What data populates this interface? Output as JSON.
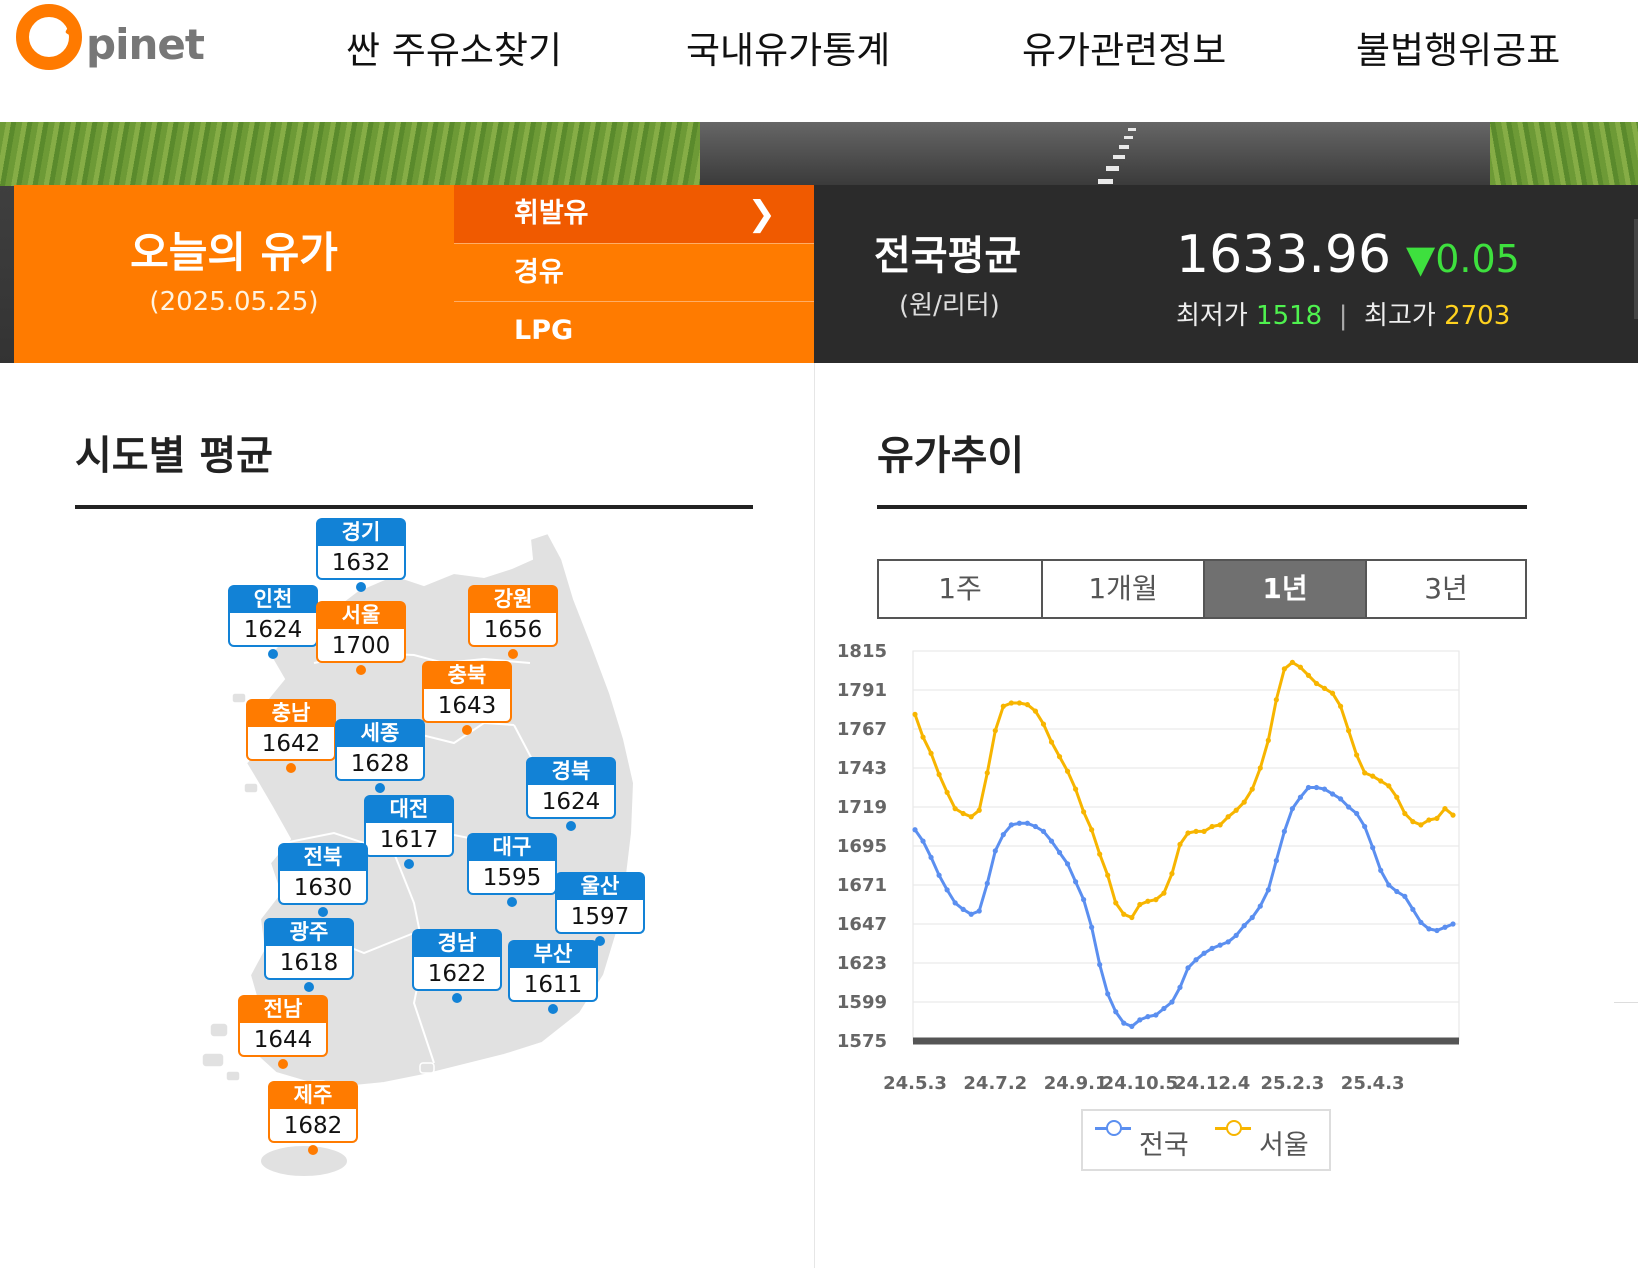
{
  "header": {
    "logo_text": "pinet",
    "nav": [
      "싼 주유소찾기",
      "국내유가통계",
      "유가관련정보",
      "불법행위공표"
    ]
  },
  "today": {
    "title": "오늘의 유가",
    "date": "(2025.05.25)",
    "fuel_types": [
      "휘발유",
      "경유",
      "LPG"
    ],
    "active_fuel": "휘발유"
  },
  "national_average": {
    "title": "전국평균",
    "unit": "(원/리터)",
    "value": "1633.96",
    "change_symbol": "▼",
    "change": "0.05",
    "min_label": "최저가",
    "min_value": "1518",
    "max_label": "최고가",
    "max_value": "2703",
    "separator": "|"
  },
  "regional": {
    "title": "시도별 평균",
    "regions": [
      {
        "name": "경기",
        "value": "1632",
        "color": "blue"
      },
      {
        "name": "인천",
        "value": "1624",
        "color": "blue"
      },
      {
        "name": "서울",
        "value": "1700",
        "color": "orange"
      },
      {
        "name": "강원",
        "value": "1656",
        "color": "orange"
      },
      {
        "name": "충북",
        "value": "1643",
        "color": "orange"
      },
      {
        "name": "충남",
        "value": "1642",
        "color": "orange"
      },
      {
        "name": "세종",
        "value": "1628",
        "color": "blue"
      },
      {
        "name": "경북",
        "value": "1624",
        "color": "blue"
      },
      {
        "name": "대전",
        "value": "1617",
        "color": "blue"
      },
      {
        "name": "전북",
        "value": "1630",
        "color": "blue"
      },
      {
        "name": "대구",
        "value": "1595",
        "color": "blue"
      },
      {
        "name": "울산",
        "value": "1597",
        "color": "blue"
      },
      {
        "name": "광주",
        "value": "1618",
        "color": "blue"
      },
      {
        "name": "경남",
        "value": "1622",
        "color": "blue"
      },
      {
        "name": "부산",
        "value": "1611",
        "color": "blue"
      },
      {
        "name": "전남",
        "value": "1644",
        "color": "orange"
      },
      {
        "name": "제주",
        "value": "1682",
        "color": "orange"
      }
    ]
  },
  "trend": {
    "title": "유가추이",
    "periods": [
      "1주",
      "1개월",
      "1년",
      "3년"
    ],
    "active_period": "1년"
  },
  "chart_data": {
    "type": "line",
    "title": "",
    "xlabel": "",
    "ylabel": "",
    "ylim": [
      1575,
      1815
    ],
    "yticks": [
      1815,
      1791,
      1767,
      1743,
      1719,
      1695,
      1671,
      1647,
      1623,
      1599,
      1575
    ],
    "xtick_labels": [
      "24.5.3",
      "24.7.2",
      "24.9.1",
      "24.10.5",
      "24.12.4",
      "25.2.3",
      "25.4.3"
    ],
    "grid": true,
    "legend_position": "bottom",
    "series": [
      {
        "name": "전국",
        "color": "#5b8ff0",
        "values": [
          1705,
          1698,
          1688,
          1677,
          1668,
          1660,
          1656,
          1653,
          1655,
          1672,
          1692,
          1702,
          1708,
          1709,
          1709,
          1707,
          1704,
          1698,
          1691,
          1684,
          1673,
          1662,
          1645,
          1622,
          1604,
          1593,
          1586,
          1584,
          1588,
          1590,
          1591,
          1595,
          1599,
          1608,
          1620,
          1625,
          1629,
          1632,
          1634,
          1636,
          1640,
          1646,
          1651,
          1658,
          1668,
          1686,
          1704,
          1718,
          1725,
          1731,
          1731,
          1730,
          1727,
          1724,
          1719,
          1715,
          1707,
          1694,
          1680,
          1671,
          1667,
          1664,
          1656,
          1648,
          1644,
          1643,
          1645,
          1647
        ]
      },
      {
        "name": "서울",
        "color": "#f7b500",
        "values": [
          1776,
          1762,
          1752,
          1739,
          1728,
          1718,
          1715,
          1713,
          1717,
          1740,
          1766,
          1781,
          1783,
          1783,
          1782,
          1778,
          1770,
          1759,
          1750,
          1741,
          1730,
          1716,
          1705,
          1690,
          1677,
          1660,
          1653,
          1651,
          1659,
          1661,
          1662,
          1666,
          1678,
          1696,
          1703,
          1704,
          1704,
          1707,
          1708,
          1713,
          1717,
          1722,
          1730,
          1743,
          1760,
          1785,
          1804,
          1808,
          1805,
          1800,
          1795,
          1792,
          1789,
          1781,
          1766,
          1751,
          1740,
          1738,
          1735,
          1732,
          1725,
          1715,
          1710,
          1708,
          1711,
          1712,
          1718,
          1714
        ]
      }
    ]
  }
}
